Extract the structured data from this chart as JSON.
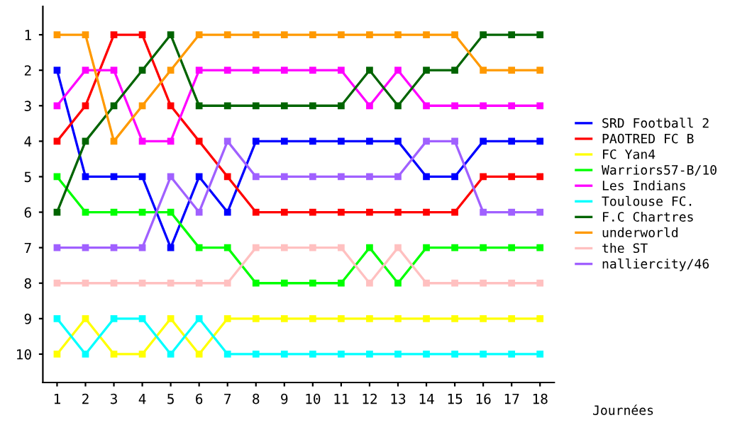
{
  "chart_data": {
    "type": "line",
    "xlabel": "Journées",
    "x": [
      1,
      2,
      3,
      4,
      5,
      6,
      7,
      8,
      9,
      10,
      11,
      12,
      13,
      14,
      15,
      16,
      17,
      18
    ],
    "xlim": [
      0.5,
      18.5
    ],
    "xticks": [
      1,
      2,
      3,
      4,
      5,
      6,
      7,
      8,
      9,
      10,
      11,
      12,
      13,
      14,
      15,
      16,
      17,
      18
    ],
    "ylim": [
      10.8,
      0.2
    ],
    "yticks": [
      1,
      2,
      3,
      4,
      5,
      6,
      7,
      8,
      9,
      10
    ],
    "marker": "square",
    "grid": false,
    "legend": "right",
    "series": [
      {
        "name": "SRD Football 2",
        "color": "#0000ff",
        "values": [
          2,
          5,
          5,
          5,
          7,
          5,
          6,
          4,
          4,
          4,
          4,
          4,
          4,
          5,
          5,
          4,
          4,
          4
        ]
      },
      {
        "name": "PAOTRED FC B",
        "color": "#ff0000",
        "values": [
          4,
          3,
          1,
          1,
          3,
          4,
          5,
          6,
          6,
          6,
          6,
          6,
          6,
          6,
          6,
          5,
          5,
          5
        ]
      },
      {
        "name": "FC Yan4",
        "color": "#ffff00",
        "values": [
          10,
          9,
          10,
          10,
          9,
          10,
          9,
          9,
          9,
          9,
          9,
          9,
          9,
          9,
          9,
          9,
          9,
          9
        ]
      },
      {
        "name": "Warriors57-B/10",
        "color": "#00ff00",
        "values": [
          5,
          6,
          6,
          6,
          6,
          7,
          7,
          8,
          8,
          8,
          8,
          7,
          8,
          7,
          7,
          7,
          7,
          7
        ]
      },
      {
        "name": "Les Indians",
        "color": "#ff00ff",
        "values": [
          3,
          2,
          2,
          4,
          4,
          2,
          2,
          2,
          2,
          2,
          2,
          3,
          2,
          3,
          3,
          3,
          3,
          3
        ]
      },
      {
        "name": "Toulouse FC.",
        "color": "#00ffff",
        "values": [
          9,
          10,
          9,
          9,
          10,
          9,
          10,
          10,
          10,
          10,
          10,
          10,
          10,
          10,
          10,
          10,
          10,
          10
        ]
      },
      {
        "name": "F.C Chartres",
        "color": "#006400",
        "values": [
          6,
          4,
          3,
          2,
          1,
          3,
          3,
          3,
          3,
          3,
          3,
          2,
          3,
          2,
          2,
          1,
          1,
          1
        ]
      },
      {
        "name": "underworld",
        "color": "#ff9900",
        "values": [
          1,
          1,
          4,
          3,
          2,
          1,
          1,
          1,
          1,
          1,
          1,
          1,
          1,
          1,
          1,
          2,
          2,
          2
        ]
      },
      {
        "name": "the ST",
        "color": "#ffc0c0",
        "values": [
          8,
          8,
          8,
          8,
          8,
          8,
          8,
          7,
          7,
          7,
          7,
          8,
          7,
          8,
          8,
          8,
          8,
          8
        ]
      },
      {
        "name": "nalliercity/46",
        "color": "#a060ff",
        "values": [
          7,
          7,
          7,
          7,
          5,
          6,
          4,
          5,
          5,
          5,
          5,
          5,
          5,
          4,
          4,
          6,
          6,
          6
        ]
      }
    ]
  }
}
